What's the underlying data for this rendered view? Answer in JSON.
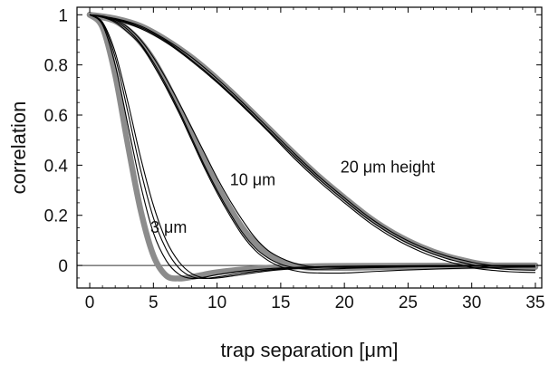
{
  "chart_data": {
    "type": "line",
    "title": "",
    "xlabel": "trap separation [μm]",
    "ylabel": "correlation",
    "xlim": [
      -1,
      35.5
    ],
    "ylim": [
      -0.09,
      1.03
    ],
    "xticks": [
      0,
      5,
      10,
      15,
      20,
      25,
      30,
      35
    ],
    "yticks": [
      0,
      0.2,
      0.4,
      0.6,
      0.8,
      1
    ],
    "ytick_labels": [
      "0",
      "0.2",
      "0.4",
      "0.6",
      "0.8",
      "1"
    ],
    "zero_line": true,
    "grid": false,
    "annotations": [
      {
        "text": "3 μm",
        "x": 6.2,
        "y": 0.13
      },
      {
        "text": "10 μm",
        "x": 12.8,
        "y": 0.32
      },
      {
        "text": "20 μm height",
        "x": 23.4,
        "y": 0.37
      }
    ],
    "series": [
      {
        "group": "3 μm",
        "style": "gray-thick",
        "x": [
          0,
          1,
          2,
          3,
          4,
          5,
          6,
          7,
          8,
          9,
          10,
          12,
          14,
          16,
          18,
          20,
          25,
          30,
          35
        ],
        "y": [
          1,
          0.95,
          0.76,
          0.48,
          0.22,
          0.04,
          -0.04,
          -0.052,
          -0.046,
          -0.036,
          -0.027,
          -0.016,
          -0.009,
          -0.005,
          -0.003,
          -0.002,
          -0.001,
          0,
          0
        ]
      },
      {
        "group": "3 μm",
        "style": "thin",
        "x": [
          0,
          1,
          2,
          3,
          4,
          5,
          6,
          7,
          8,
          9,
          10,
          12,
          14,
          16,
          18,
          20,
          25,
          30,
          35
        ],
        "y": [
          1,
          0.96,
          0.8,
          0.56,
          0.32,
          0.13,
          0.02,
          -0.035,
          -0.052,
          -0.047,
          -0.037,
          -0.022,
          -0.013,
          -0.008,
          -0.005,
          -0.003,
          -0.001,
          0,
          0
        ]
      },
      {
        "group": "3 μm",
        "style": "thin",
        "x": [
          0,
          1,
          2,
          3,
          4,
          5,
          6,
          7,
          8,
          9,
          10,
          12,
          14,
          16,
          18,
          20,
          25,
          30,
          35
        ],
        "y": [
          1,
          0.965,
          0.83,
          0.61,
          0.38,
          0.19,
          0.065,
          -0.01,
          -0.045,
          -0.052,
          -0.046,
          -0.03,
          -0.018,
          -0.01,
          -0.006,
          -0.004,
          -0.001,
          0,
          0
        ]
      },
      {
        "group": "3 μm",
        "style": "thin",
        "x": [
          0,
          1,
          2,
          3,
          4,
          5,
          6,
          7,
          8,
          9,
          10,
          12,
          14,
          16,
          18,
          20,
          25,
          30,
          35
        ],
        "y": [
          1,
          0.97,
          0.85,
          0.65,
          0.43,
          0.24,
          0.1,
          0.015,
          -0.032,
          -0.05,
          -0.05,
          -0.036,
          -0.022,
          -0.013,
          -0.008,
          -0.005,
          -0.002,
          0,
          0
        ]
      },
      {
        "group": "10 μm",
        "style": "gray-thick",
        "x": [
          0,
          1,
          2,
          3,
          4,
          5,
          6,
          7,
          8,
          9,
          10,
          11,
          12,
          13,
          14,
          15,
          16,
          17,
          18,
          20,
          22,
          25,
          30,
          35
        ],
        "y": [
          1,
          0.99,
          0.975,
          0.94,
          0.89,
          0.82,
          0.73,
          0.63,
          0.53,
          0.42,
          0.32,
          0.23,
          0.15,
          0.09,
          0.045,
          0.015,
          0.0,
          -0.008,
          -0.01,
          -0.01,
          -0.008,
          -0.005,
          -0.003,
          -0.002
        ]
      },
      {
        "group": "10 μm",
        "style": "thin",
        "x": [
          0,
          1,
          2,
          3,
          4,
          5,
          6,
          7,
          8,
          9,
          10,
          11,
          12,
          13,
          14,
          15,
          16,
          17,
          18,
          20,
          22,
          25,
          30,
          35
        ],
        "y": [
          1,
          0.99,
          0.975,
          0.94,
          0.885,
          0.81,
          0.72,
          0.62,
          0.51,
          0.4,
          0.3,
          0.21,
          0.13,
          0.07,
          0.03,
          0.005,
          -0.008,
          -0.014,
          -0.015,
          -0.012,
          -0.009,
          -0.006,
          -0.003,
          -0.002
        ]
      },
      {
        "group": "10 μm",
        "style": "thin",
        "x": [
          0,
          1,
          2,
          3,
          4,
          5,
          6,
          7,
          8,
          9,
          10,
          11,
          12,
          13,
          14,
          15,
          16,
          17,
          18,
          20,
          22,
          25,
          30,
          35
        ],
        "y": [
          1,
          0.995,
          0.98,
          0.95,
          0.9,
          0.83,
          0.745,
          0.65,
          0.55,
          0.45,
          0.35,
          0.26,
          0.18,
          0.11,
          0.06,
          0.03,
          0.01,
          -0.002,
          -0.006,
          -0.008,
          -0.007,
          -0.005,
          -0.003,
          -0.002
        ]
      },
      {
        "group": "10 μm",
        "style": "thin",
        "x": [
          0,
          1,
          2,
          3,
          4,
          5,
          6,
          7,
          8,
          9,
          10,
          11,
          12,
          13,
          14,
          15,
          16,
          17,
          18,
          20,
          22,
          25,
          30,
          35
        ],
        "y": [
          1,
          0.99,
          0.97,
          0.93,
          0.88,
          0.8,
          0.71,
          0.61,
          0.5,
          0.39,
          0.29,
          0.2,
          0.12,
          0.06,
          0.02,
          -0.005,
          -0.02,
          -0.028,
          -0.03,
          -0.03,
          -0.025,
          -0.018,
          -0.01,
          -0.006
        ]
      },
      {
        "group": "20 μm height",
        "style": "gray-thick",
        "x": [
          0,
          2,
          4,
          6,
          8,
          10,
          12,
          14,
          16,
          18,
          20,
          22,
          24,
          26,
          28,
          30,
          31,
          32,
          33,
          34,
          35
        ],
        "y": [
          1,
          0.985,
          0.955,
          0.9,
          0.83,
          0.745,
          0.65,
          0.55,
          0.45,
          0.355,
          0.27,
          0.19,
          0.125,
          0.075,
          0.038,
          0.013,
          0.004,
          -0.002,
          -0.005,
          -0.006,
          -0.006
        ]
      },
      {
        "group": "20 μm height",
        "style": "thin",
        "x": [
          0,
          2,
          4,
          6,
          8,
          10,
          12,
          14,
          16,
          18,
          20,
          22,
          24,
          26,
          28,
          30,
          31,
          32,
          33,
          34,
          35
        ],
        "y": [
          1,
          0.985,
          0.955,
          0.9,
          0.83,
          0.745,
          0.65,
          0.55,
          0.45,
          0.355,
          0.27,
          0.19,
          0.125,
          0.075,
          0.038,
          0.013,
          0.004,
          -0.002,
          -0.005,
          -0.006,
          -0.006
        ]
      },
      {
        "group": "20 μm height",
        "style": "thin",
        "x": [
          0,
          2,
          4,
          6,
          8,
          10,
          12,
          14,
          16,
          18,
          20,
          22,
          24,
          26,
          28,
          30,
          31,
          32,
          33,
          34,
          35
        ],
        "y": [
          1,
          0.983,
          0.95,
          0.895,
          0.82,
          0.735,
          0.64,
          0.54,
          0.44,
          0.345,
          0.26,
          0.18,
          0.115,
          0.065,
          0.028,
          0.003,
          -0.006,
          -0.012,
          -0.016,
          -0.018,
          -0.019
        ]
      },
      {
        "group": "20 μm height",
        "style": "thin",
        "x": [
          0,
          2,
          4,
          6,
          8,
          10,
          12,
          14,
          16,
          18,
          20,
          22,
          24,
          26,
          28,
          30,
          31,
          32,
          33,
          34,
          35
        ],
        "y": [
          1,
          0.98,
          0.945,
          0.89,
          0.815,
          0.73,
          0.635,
          0.535,
          0.43,
          0.335,
          0.25,
          0.17,
          0.105,
          0.055,
          0.018,
          -0.008,
          -0.016,
          -0.021,
          -0.025,
          -0.027,
          -0.028
        ]
      }
    ]
  }
}
